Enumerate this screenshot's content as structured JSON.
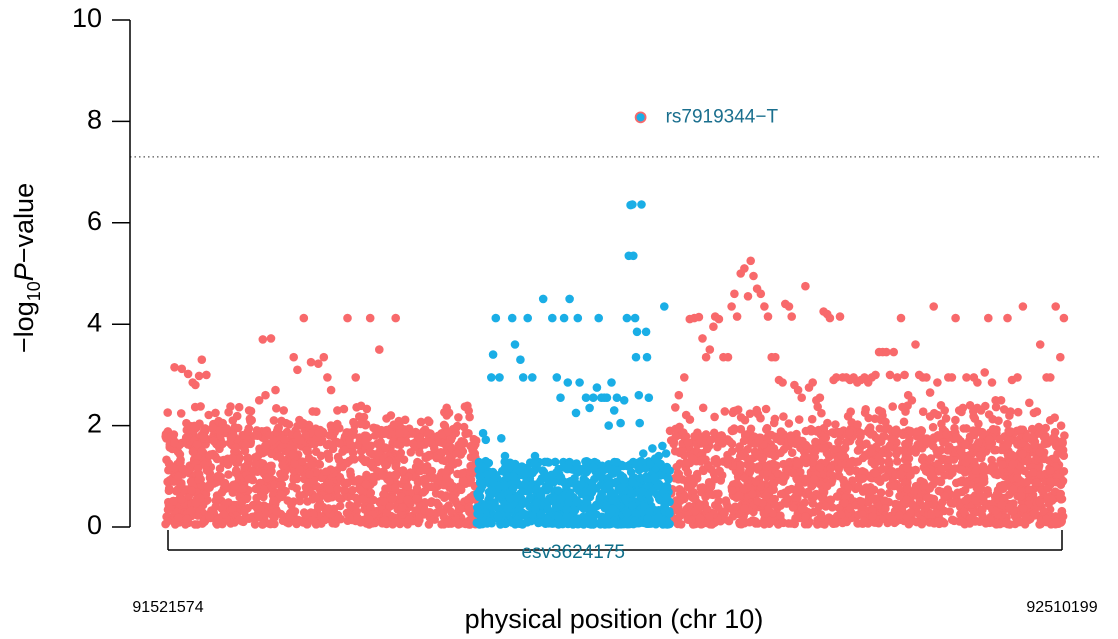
{
  "chart_data": {
    "type": "scatter",
    "title": "",
    "ylabel_prefix": "−log",
    "ylabel_sub": "10",
    "ylabel_italic": "P",
    "ylabel_suffix": "−value",
    "xlabel": "physical position (chr 10)",
    "xlim": [
      91521574,
      92510199
    ],
    "ylim": [
      0,
      10
    ],
    "yticks": [
      "0",
      "2",
      "4",
      "6",
      "8",
      "10"
    ],
    "x_start_label": "91521574",
    "x_end_label": "92510199",
    "significance_threshold": 7.3,
    "region": {
      "label": "esv3624175",
      "start": 91864000,
      "end": 92076000,
      "color": "#0f6f8a"
    },
    "lead_snp": {
      "label": "rs7919344−T",
      "x": 92044000,
      "y": 8.08,
      "color": "#1a6f8e"
    },
    "colors": {
      "background": "#f8696b",
      "region": "#1aaee6",
      "lead_outline": "#f8696b",
      "threshold": "#555555"
    },
    "background_series": {
      "name": "",
      "points": [
        [
          91532000,
          3.15
        ],
        [
          91540000,
          3.12
        ],
        [
          91547000,
          3.02
        ],
        [
          91552000,
          2.85
        ],
        [
          91555000,
          2.8
        ],
        [
          91559000,
          2.98
        ],
        [
          91562000,
          3.3
        ],
        [
          91567000,
          3.0
        ],
        [
          91577000,
          2.25
        ],
        [
          91585000,
          2.05
        ],
        [
          91596000,
          2.1
        ],
        [
          91602000,
          1.95
        ],
        [
          91614000,
          2.3
        ],
        [
          91625000,
          2.5
        ],
        [
          91632000,
          2.6
        ],
        [
          91629000,
          3.7
        ],
        [
          91638000,
          3.72
        ],
        [
          91643000,
          2.7
        ],
        [
          91652000,
          2.3
        ],
        [
          91663000,
          3.35
        ],
        [
          91667000,
          3.1
        ],
        [
          91674000,
          4.12
        ],
        [
          91682000,
          3.25
        ],
        [
          91690000,
          3.22
        ],
        [
          91696000,
          3.35
        ],
        [
          91700000,
          2.95
        ],
        [
          91704000,
          2.7
        ],
        [
          91711000,
          2.3
        ],
        [
          91722000,
          4.12
        ],
        [
          91731000,
          2.95
        ],
        [
          91747000,
          4.12
        ],
        [
          91757000,
          3.5
        ],
        [
          91775000,
          4.12
        ],
        [
          91779000,
          1.85
        ],
        [
          92086000,
          2.6
        ],
        [
          92092000,
          2.95
        ],
        [
          92098000,
          4.1
        ],
        [
          92103000,
          4.12
        ],
        [
          92108000,
          4.14
        ],
        [
          92112000,
          3.72
        ],
        [
          92116000,
          3.35
        ],
        [
          92120000,
          3.5
        ],
        [
          92124000,
          3.95
        ],
        [
          92126000,
          4.15
        ],
        [
          92130000,
          4.1
        ],
        [
          92135000,
          3.35
        ],
        [
          92140000,
          3.35
        ],
        [
          92144000,
          4.35
        ],
        [
          92147000,
          4.6
        ],
        [
          92150000,
          4.15
        ],
        [
          92154000,
          5.0
        ],
        [
          92158000,
          5.1
        ],
        [
          92162000,
          4.55
        ],
        [
          92165000,
          5.25
        ],
        [
          92168000,
          4.95
        ],
        [
          92172000,
          4.7
        ],
        [
          92176000,
          4.6
        ],
        [
          92180000,
          4.35
        ],
        [
          92184000,
          4.15
        ],
        [
          92188000,
          3.35
        ],
        [
          92192000,
          3.35
        ],
        [
          92196000,
          2.9
        ],
        [
          92200000,
          2.85
        ],
        [
          92203000,
          4.4
        ],
        [
          92207000,
          4.35
        ],
        [
          92210000,
          4.15
        ],
        [
          92213000,
          2.8
        ],
        [
          92217000,
          2.7
        ],
        [
          92221000,
          2.55
        ],
        [
          92225000,
          4.75
        ],
        [
          92229000,
          2.75
        ],
        [
          92233000,
          2.85
        ],
        [
          92237000,
          2.5
        ],
        [
          92241000,
          2.55
        ],
        [
          92245000,
          4.25
        ],
        [
          92249000,
          4.2
        ],
        [
          92252000,
          4.12
        ],
        [
          92256000,
          2.9
        ],
        [
          92259000,
          2.95
        ],
        [
          92263000,
          4.15
        ],
        [
          92266000,
          2.95
        ],
        [
          92270000,
          2.95
        ],
        [
          92274000,
          2.9
        ],
        [
          92278000,
          2.95
        ],
        [
          92282000,
          2.85
        ],
        [
          92286000,
          2.9
        ],
        [
          92290000,
          2.95
        ],
        [
          92294000,
          2.85
        ],
        [
          92298000,
          2.95
        ],
        [
          92302000,
          3.0
        ],
        [
          92306000,
          3.45
        ],
        [
          92310000,
          3.45
        ],
        [
          92314000,
          3.45
        ],
        [
          92318000,
          3.0
        ],
        [
          92322000,
          3.45
        ],
        [
          92326000,
          2.95
        ],
        [
          92330000,
          4.12
        ],
        [
          92334000,
          3.0
        ],
        [
          92338000,
          2.6
        ],
        [
          92342000,
          2.5
        ],
        [
          92346000,
          3.6
        ],
        [
          92350000,
          3.0
        ],
        [
          92354000,
          2.95
        ],
        [
          92358000,
          2.95
        ],
        [
          92362000,
          2.65
        ],
        [
          92366000,
          4.35
        ],
        [
          92370000,
          2.85
        ],
        [
          92374000,
          2.4
        ],
        [
          92378000,
          2.3
        ],
        [
          92382000,
          2.95
        ],
        [
          92386000,
          2.95
        ],
        [
          92390000,
          4.12
        ],
        [
          92394000,
          2.3
        ],
        [
          92398000,
          2.35
        ],
        [
          92402000,
          2.95
        ],
        [
          92406000,
          2.4
        ],
        [
          92410000,
          2.95
        ],
        [
          92414000,
          2.85
        ],
        [
          92418000,
          2.3
        ],
        [
          92422000,
          3.05
        ],
        [
          92426000,
          4.12
        ],
        [
          92430000,
          2.85
        ],
        [
          92434000,
          2.5
        ],
        [
          92440000,
          2.5
        ],
        [
          92447000,
          4.12
        ],
        [
          92452000,
          2.9
        ],
        [
          92458000,
          2.95
        ],
        [
          92464000,
          4.35
        ],
        [
          92471000,
          2.45
        ],
        [
          92476000,
          2.25
        ],
        [
          92483000,
          3.6
        ],
        [
          92490000,
          2.95
        ],
        [
          92494000,
          2.95
        ],
        [
          92500000,
          4.35
        ],
        [
          92505000,
          3.35
        ],
        [
          92509000,
          4.12
        ]
      ],
      "dense_x_range": [
        91521574,
        92510199
      ],
      "dense_y_range": [
        0.05,
        1.95
      ],
      "dense_count": 3600,
      "mid_count": 380,
      "mid_y_range": [
        1.6,
        2.4
      ]
    },
    "region_series": {
      "name": "",
      "points": [
        [
          91871000,
          1.85
        ],
        [
          91874000,
          1.72
        ],
        [
          91880000,
          2.95
        ],
        [
          91882000,
          3.4
        ],
        [
          91885000,
          4.12
        ],
        [
          91889000,
          2.95
        ],
        [
          91891000,
          1.75
        ],
        [
          91895000,
          1.4
        ],
        [
          91903000,
          4.12
        ],
        [
          91906000,
          3.6
        ],
        [
          91912000,
          3.3
        ],
        [
          91915000,
          2.95
        ],
        [
          91920000,
          4.12
        ],
        [
          91925000,
          2.95
        ],
        [
          91928000,
          1.4
        ],
        [
          91937000,
          4.5
        ],
        [
          91947000,
          4.12
        ],
        [
          91952000,
          2.95
        ],
        [
          91956000,
          2.55
        ],
        [
          91960000,
          4.12
        ],
        [
          91964000,
          2.85
        ],
        [
          91966000,
          4.5
        ],
        [
          91973000,
          2.25
        ],
        [
          91975000,
          4.12
        ],
        [
          91977000,
          2.85
        ],
        [
          91984000,
          2.55
        ],
        [
          91988000,
          2.35
        ],
        [
          91992000,
          2.55
        ],
        [
          91996000,
          2.75
        ],
        [
          91998000,
          4.12
        ],
        [
          92001000,
          2.55
        ],
        [
          92004000,
          2.55
        ],
        [
          92007000,
          2.55
        ],
        [
          92009000,
          2.0
        ],
        [
          92012000,
          2.85
        ],
        [
          92015000,
          2.3
        ],
        [
          92018000,
          2.55
        ],
        [
          92022000,
          2.05
        ],
        [
          92026000,
          2.5
        ],
        [
          92029000,
          4.12
        ],
        [
          92031000,
          5.35
        ],
        [
          92033000,
          6.35
        ],
        [
          92035000,
          6.36
        ],
        [
          92036000,
          5.35
        ],
        [
          92038000,
          4.12
        ],
        [
          92039000,
          3.35
        ],
        [
          92040000,
          3.85
        ],
        [
          92042000,
          2.6
        ],
        [
          92043000,
          2.05
        ],
        [
          92045000,
          6.36
        ],
        [
          92047000,
          1.45
        ],
        [
          92050000,
          3.85
        ],
        [
          92051000,
          3.35
        ],
        [
          92053000,
          2.55
        ],
        [
          92057000,
          1.55
        ],
        [
          92060000,
          1.35
        ],
        [
          92064000,
          1.4
        ],
        [
          92068000,
          1.6
        ],
        [
          92070000,
          4.35
        ],
        [
          92072000,
          1.45
        ]
      ],
      "dense_y_range": [
        0.05,
        1.3
      ],
      "dense_count": 900
    }
  }
}
